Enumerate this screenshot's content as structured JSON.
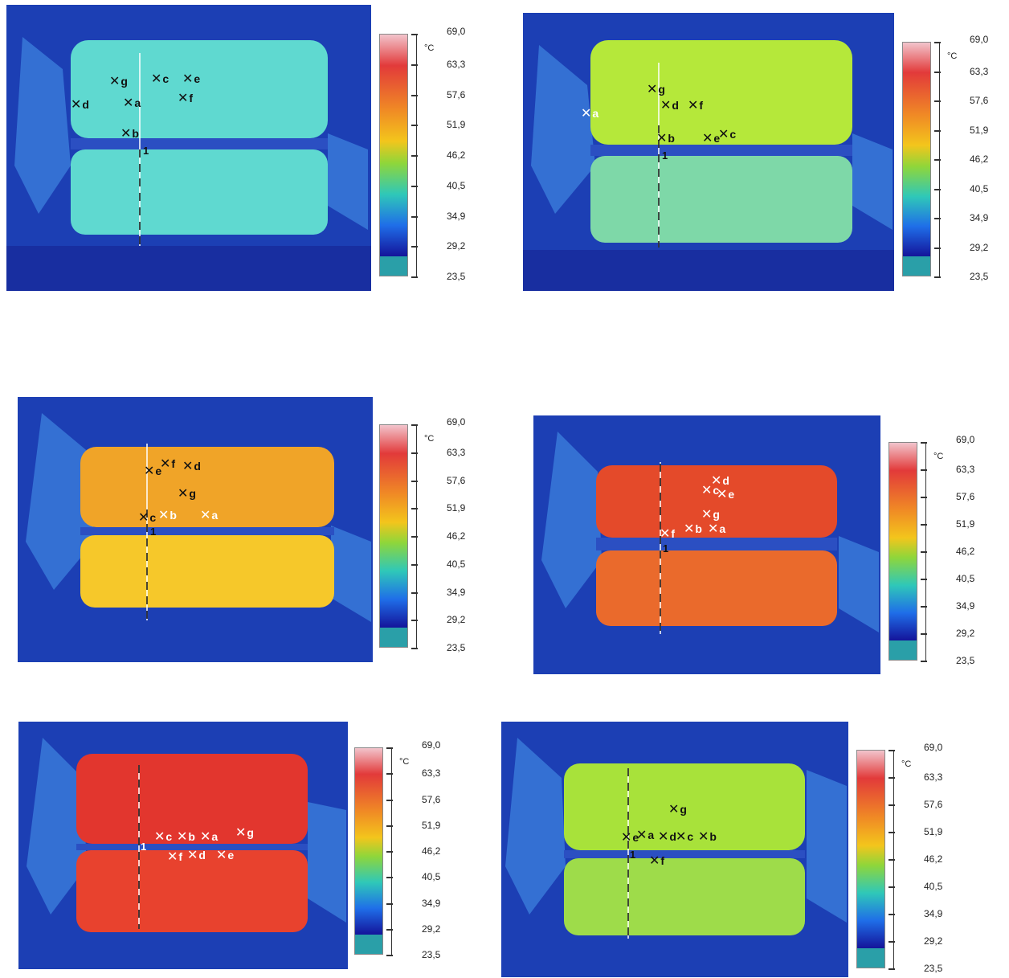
{
  "scale": {
    "unit": "°C",
    "ticks": [
      "69,0",
      "63,3",
      "57,6",
      "51,9",
      "46,2",
      "40,5",
      "34,9",
      "29,2",
      "23,5"
    ],
    "colors": [
      "#f2c4cc",
      "#e23a3a",
      "#f08a25",
      "#f3c51c",
      "#8fd63a",
      "#2fc8b8",
      "#1f6ee8",
      "#14149a",
      "#2a9fa8"
    ]
  },
  "panels": [
    {
      "line_label": "1",
      "body_color": "#5fd9d0",
      "markers": [
        {
          "label": "g",
          "color": "#111111"
        },
        {
          "label": "c",
          "color": "#111111"
        },
        {
          "label": "e",
          "color": "#111111"
        },
        {
          "label": "d",
          "color": "#111111"
        },
        {
          "label": "a",
          "color": "#111111"
        },
        {
          "label": "f",
          "color": "#111111"
        },
        {
          "label": "b",
          "color": "#111111"
        }
      ]
    },
    {
      "line_label": "1",
      "body_color": "#b5e83a",
      "markers": [
        {
          "label": "g",
          "color": "#111111"
        },
        {
          "label": "d",
          "color": "#111111"
        },
        {
          "label": "f",
          "color": "#111111"
        },
        {
          "label": "a",
          "color": "#ffffff"
        },
        {
          "label": "b",
          "color": "#111111"
        },
        {
          "label": "e",
          "color": "#111111"
        },
        {
          "label": "c",
          "color": "#111111"
        }
      ]
    },
    {
      "line_label": "1",
      "body_color": "#f0a428",
      "markers": [
        {
          "label": "f",
          "color": "#111111"
        },
        {
          "label": "d",
          "color": "#111111"
        },
        {
          "label": "e",
          "color": "#111111"
        },
        {
          "label": "g",
          "color": "#111111"
        },
        {
          "label": "c",
          "color": "#111111"
        },
        {
          "label": "b",
          "color": "#ffffff"
        },
        {
          "label": "a",
          "color": "#ffffff"
        }
      ]
    },
    {
      "line_label": "1",
      "body_color": "#e44a2a",
      "markers": [
        {
          "label": "d",
          "color": "#ffffff"
        },
        {
          "label": "c",
          "color": "#ffffff"
        },
        {
          "label": "e",
          "color": "#ffffff"
        },
        {
          "label": "g",
          "color": "#ffffff"
        },
        {
          "label": "f",
          "color": "#ffffff"
        },
        {
          "label": "b",
          "color": "#ffffff"
        },
        {
          "label": "a",
          "color": "#ffffff"
        }
      ]
    },
    {
      "line_label": "1",
      "body_color": "#e2362e",
      "markers": [
        {
          "label": "c",
          "color": "#ffffff"
        },
        {
          "label": "b",
          "color": "#ffffff"
        },
        {
          "label": "a",
          "color": "#ffffff"
        },
        {
          "label": "g",
          "color": "#ffffff"
        },
        {
          "label": "f",
          "color": "#ffffff"
        },
        {
          "label": "d",
          "color": "#ffffff"
        },
        {
          "label": "e",
          "color": "#ffffff"
        }
      ]
    },
    {
      "line_label": "1",
      "body_color": "#a8e23a",
      "markers": [
        {
          "label": "g",
          "color": "#111111"
        },
        {
          "label": "e",
          "color": "#111111"
        },
        {
          "label": "a",
          "color": "#111111"
        },
        {
          "label": "d",
          "color": "#111111"
        },
        {
          "label": "c",
          "color": "#111111"
        },
        {
          "label": "b",
          "color": "#111111"
        },
        {
          "label": "f",
          "color": "#111111"
        }
      ]
    }
  ]
}
